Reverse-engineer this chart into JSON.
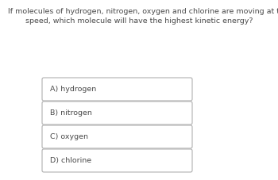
{
  "question_line1": "If molecules of hydrogen, nitrogen, oxygen and chlorine are moving at the same",
  "question_line2": "speed, which molecule will have the highest kinetic energy?",
  "options": [
    "A) hydrogen",
    "B) nitrogen",
    "C) oxygen",
    "D) chlorine"
  ],
  "background_color": "#ffffff",
  "text_color": "#4a4a4a",
  "box_edge_color": "#b0b0b0",
  "box_face_color": "#ffffff",
  "question_fontsize": 6.8,
  "option_fontsize": 6.8,
  "fig_width": 3.5,
  "fig_height": 2.27,
  "dpi": 100
}
